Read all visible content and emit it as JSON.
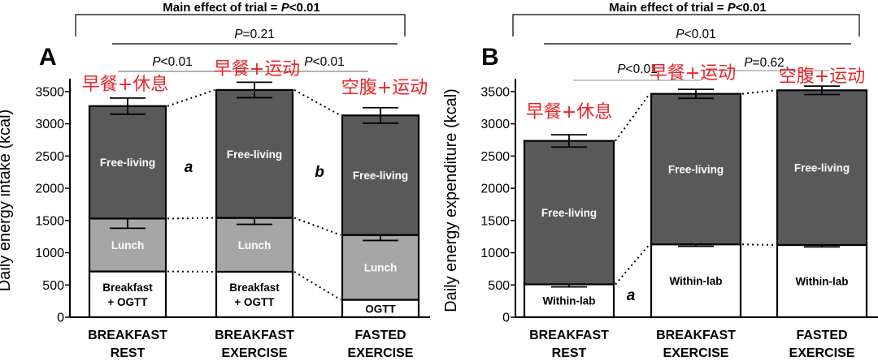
{
  "chart_data": [
    {
      "type": "bar",
      "panel": "A",
      "ylabel": "Daily energy intake (kcal)",
      "ylim": [
        0,
        3700
      ],
      "yticks": [
        0,
        500,
        1000,
        1500,
        2000,
        2500,
        3000,
        3500
      ],
      "categories": [
        {
          "line1": "BREAKFAST",
          "line2": "REST"
        },
        {
          "line1": "BREAKFAST",
          "line2": "EXERCISE"
        },
        {
          "line1": "FASTED",
          "line2": "EXERCISE"
        }
      ],
      "cn_labels": [
        "早餐+休息",
        "早餐+运动",
        "空腹+运动"
      ],
      "bars": [
        {
          "segments": [
            {
              "label": "Breakfast\n+ OGTT",
              "from": 0,
              "to": 710,
              "color": "#ffffff",
              "text": "black"
            },
            {
              "label": "Lunch",
              "from": 710,
              "to": 1530,
              "color": "#a6a6a6",
              "text": "white",
              "err": 150
            },
            {
              "label": "Free-living",
              "from": 1530,
              "to": 3275,
              "color": "#595959",
              "text": "white",
              "err": 125
            }
          ]
        },
        {
          "segments": [
            {
              "label": "Breakfast\n+ OGTT",
              "from": 0,
              "to": 705,
              "color": "#ffffff",
              "text": "black"
            },
            {
              "label": "Lunch",
              "from": 705,
              "to": 1540,
              "color": "#a6a6a6",
              "text": "white",
              "err": 100
            },
            {
              "label": "Free-living",
              "from": 1540,
              "to": 3525,
              "color": "#595959",
              "text": "white",
              "err": 120
            }
          ]
        },
        {
          "segments": [
            {
              "label": "OGTT",
              "from": 0,
              "to": 270,
              "color": "#ffffff",
              "text": "black"
            },
            {
              "label": "Lunch",
              "from": 270,
              "to": 1275,
              "color": "#a6a6a6",
              "text": "white",
              "err": 85
            },
            {
              "label": "Free-living",
              "from": 1275,
              "to": 3130,
              "color": "#595959",
              "text": "white",
              "err": 120
            }
          ]
        }
      ],
      "letters": [
        "a",
        "b"
      ],
      "annotations": {
        "main": "Main effect of trial = ",
        "main_p": "P",
        "main_tail": "<0.01",
        "outer": "=0.21",
        "left": "<0.01",
        "right": "<0.01"
      }
    },
    {
      "type": "bar",
      "panel": "B",
      "ylabel": "Daily energy expenditure (kcal)",
      "ylim": [
        0,
        3700
      ],
      "yticks": [
        0,
        500,
        1000,
        1500,
        2000,
        2500,
        3000,
        3500
      ],
      "categories": [
        {
          "line1": "BREAKFAST",
          "line2": "REST"
        },
        {
          "line1": "BREAKFAST",
          "line2": "EXERCISE"
        },
        {
          "line1": "FASTED",
          "line2": "EXERCISE"
        }
      ],
      "cn_labels": [
        "早餐+休息",
        "早餐+运动",
        "空腹+运动"
      ],
      "bars": [
        {
          "segments": [
            {
              "label": "Within-lab",
              "from": 0,
              "to": 510,
              "color": "#ffffff",
              "text": "black",
              "err": 40
            },
            {
              "label": "Free-living",
              "from": 510,
              "to": 2735,
              "color": "#595959",
              "text": "white",
              "err": 95
            }
          ]
        },
        {
          "segments": [
            {
              "label": "Within-lab",
              "from": 0,
              "to": 1130,
              "color": "#ffffff",
              "text": "black",
              "err": 30
            },
            {
              "label": "Free-living",
              "from": 1130,
              "to": 3465,
              "color": "#595959",
              "text": "white",
              "err": 70
            }
          ]
        },
        {
          "segments": [
            {
              "label": "Within-lab",
              "from": 0,
              "to": 1120,
              "color": "#ffffff",
              "text": "black",
              "err": 30
            },
            {
              "label": "Free-living",
              "from": 1120,
              "to": 3520,
              "color": "#595959",
              "text": "white",
              "err": 65
            }
          ]
        }
      ],
      "letters": [
        "a"
      ],
      "annotations": {
        "main": "Main effect of trial = ",
        "main_p": "P",
        "main_tail": "<0.01",
        "outer": "<0.01",
        "left": "<0.01",
        "right": "=0.62"
      }
    }
  ]
}
